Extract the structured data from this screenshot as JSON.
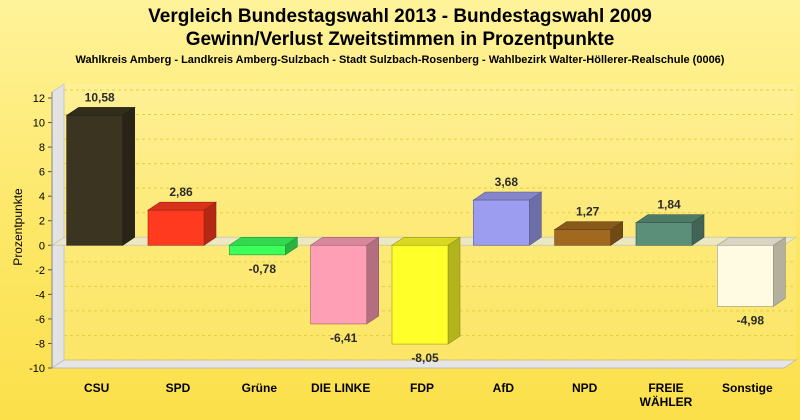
{
  "chart_data": {
    "type": "bar",
    "title": "Vergleich Bundestagswahl 2013 - Bundestagswahl 2009",
    "title_line2": "Gewinn/Verlust Zweitstimmen in Prozentpunkte",
    "subtitle": "Wahlkreis Amberg - Landkreis Amberg-Sulzbach - Stadt Sulzbach-Rosenberg - Wahlbezirk Walter-Höllerer-Realschule (0006)",
    "ylabel": "Prozentpunkte",
    "xlabel": "",
    "ylim": [
      -10,
      12
    ],
    "yticks": [
      "12",
      "10",
      "8",
      "6",
      "4",
      "2",
      "0",
      "-2",
      "-4",
      "-6",
      "-8",
      "-10"
    ],
    "grid": true,
    "categories": [
      "CSU",
      "SPD",
      "Grüne",
      "DIE LINKE",
      "FDP",
      "AfD",
      "NPD",
      "FREIE WÄHLER",
      "Sonstige"
    ],
    "category_lines": [
      [
        "CSU"
      ],
      [
        "SPD"
      ],
      [
        "Grüne"
      ],
      [
        "DIE LINKE"
      ],
      [
        "FDP"
      ],
      [
        "AfD"
      ],
      [
        "NPD"
      ],
      [
        "FREIE",
        "WÄHLER"
      ],
      [
        "Sonstige"
      ]
    ],
    "values": [
      10.58,
      2.86,
      -0.78,
      -6.41,
      -8.05,
      3.68,
      1.27,
      1.84,
      -4.98
    ],
    "value_labels": [
      "10,58",
      "2,86",
      "-0,78",
      "-6,41",
      "-8,05",
      "3,68",
      "1,27",
      "1,84",
      "-4,98"
    ],
    "colors": [
      "#3a3421",
      "#ff3a1f",
      "#3cff5a",
      "#ff9fb6",
      "#ffff2a",
      "#9c9cf0",
      "#a0691f",
      "#5c8f7a",
      "#fffbe2"
    ]
  }
}
